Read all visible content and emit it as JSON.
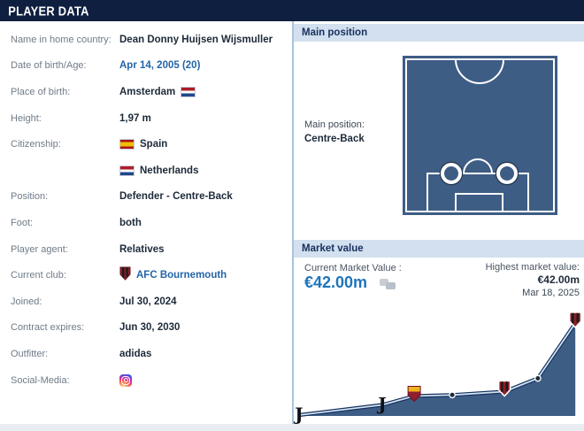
{
  "header": {
    "title": "PLAYER DATA"
  },
  "player_info": {
    "rows": [
      {
        "label": "Name in home country:",
        "value": "Dean Donny Huijsen Wijsmuller"
      },
      {
        "label": "Date of birth/Age:",
        "value": "Apr 14, 2005 (20)"
      },
      {
        "label": "Place of birth:",
        "value": "Amsterdam",
        "flag": "Netherlands"
      },
      {
        "label": "Height:",
        "value": "1,97 m"
      },
      {
        "label": "Citizenship:",
        "value": "Spain",
        "flag": "Spain"
      },
      {
        "label": "",
        "value": "Netherlands",
        "flag": "Netherlands"
      },
      {
        "label": "Position:",
        "value": "Defender - Centre-Back"
      },
      {
        "label": "Foot:",
        "value": "both"
      },
      {
        "label": "Player agent:",
        "value": "Relatives"
      },
      {
        "label": "Current club:",
        "value": "AFC Bournemouth",
        "badge": "AFC Bournemouth crest"
      },
      {
        "label": "Joined:",
        "value": "Jul 30, 2024"
      },
      {
        "label": "Contract expires:",
        "value": "Jun 30, 2030"
      },
      {
        "label": "Outfitter:",
        "value": "adidas"
      },
      {
        "label": "Social-Media:",
        "value": "",
        "icon": "instagram"
      }
    ]
  },
  "main_position": {
    "section_title": "Main position",
    "label": "Main position:",
    "value": "Centre-Back"
  },
  "market_value": {
    "section_title": "Market value",
    "current_label": "Current Market Value :",
    "current_value": "€42.00m",
    "highest_label": "Highest market value:",
    "highest_value": "€42.00m",
    "highest_date": "Mar 18, 2025"
  },
  "chart_data": {
    "type": "area",
    "title": "",
    "unit": "€m",
    "ylim": [
      0,
      42
    ],
    "grid": false,
    "legend": "none",
    "points": [
      {
        "club": "Juventus",
        "marker": "juventus",
        "value": 0.4,
        "x_frac": 0.018
      },
      {
        "club": "Juventus",
        "marker": "juventus",
        "value": 5,
        "x_frac": 0.305
      },
      {
        "club": "AS Roma",
        "marker": "roma",
        "value": 9,
        "x_frac": 0.415
      },
      {
        "club": "AS Roma",
        "marker": "dot",
        "value": 9.5,
        "x_frac": 0.546
      },
      {
        "club": "AFC Bournemouth",
        "marker": "bournemouth",
        "value": 11,
        "x_frac": 0.726
      },
      {
        "club": "AFC Bournemouth",
        "marker": "dot",
        "value": 17,
        "x_frac": 0.841
      },
      {
        "club": "AFC Bournemouth",
        "marker": "bournemouth",
        "value": 42,
        "x_frac": 0.97
      }
    ],
    "peak": {
      "value": "€42.00m",
      "date": "Mar 18, 2025"
    }
  },
  "colors": {
    "header_navy": "#0e1f40",
    "section_strip": "#d2e0ef",
    "section_title_text": "#17305e",
    "link_blue": "#2464a8",
    "value_blue": "#1d75bb",
    "pitch_fill": "#3e5d85",
    "chart_area": "#3e5d85",
    "label_gray": "#6f7b88",
    "value_dark": "#1d2a39"
  }
}
